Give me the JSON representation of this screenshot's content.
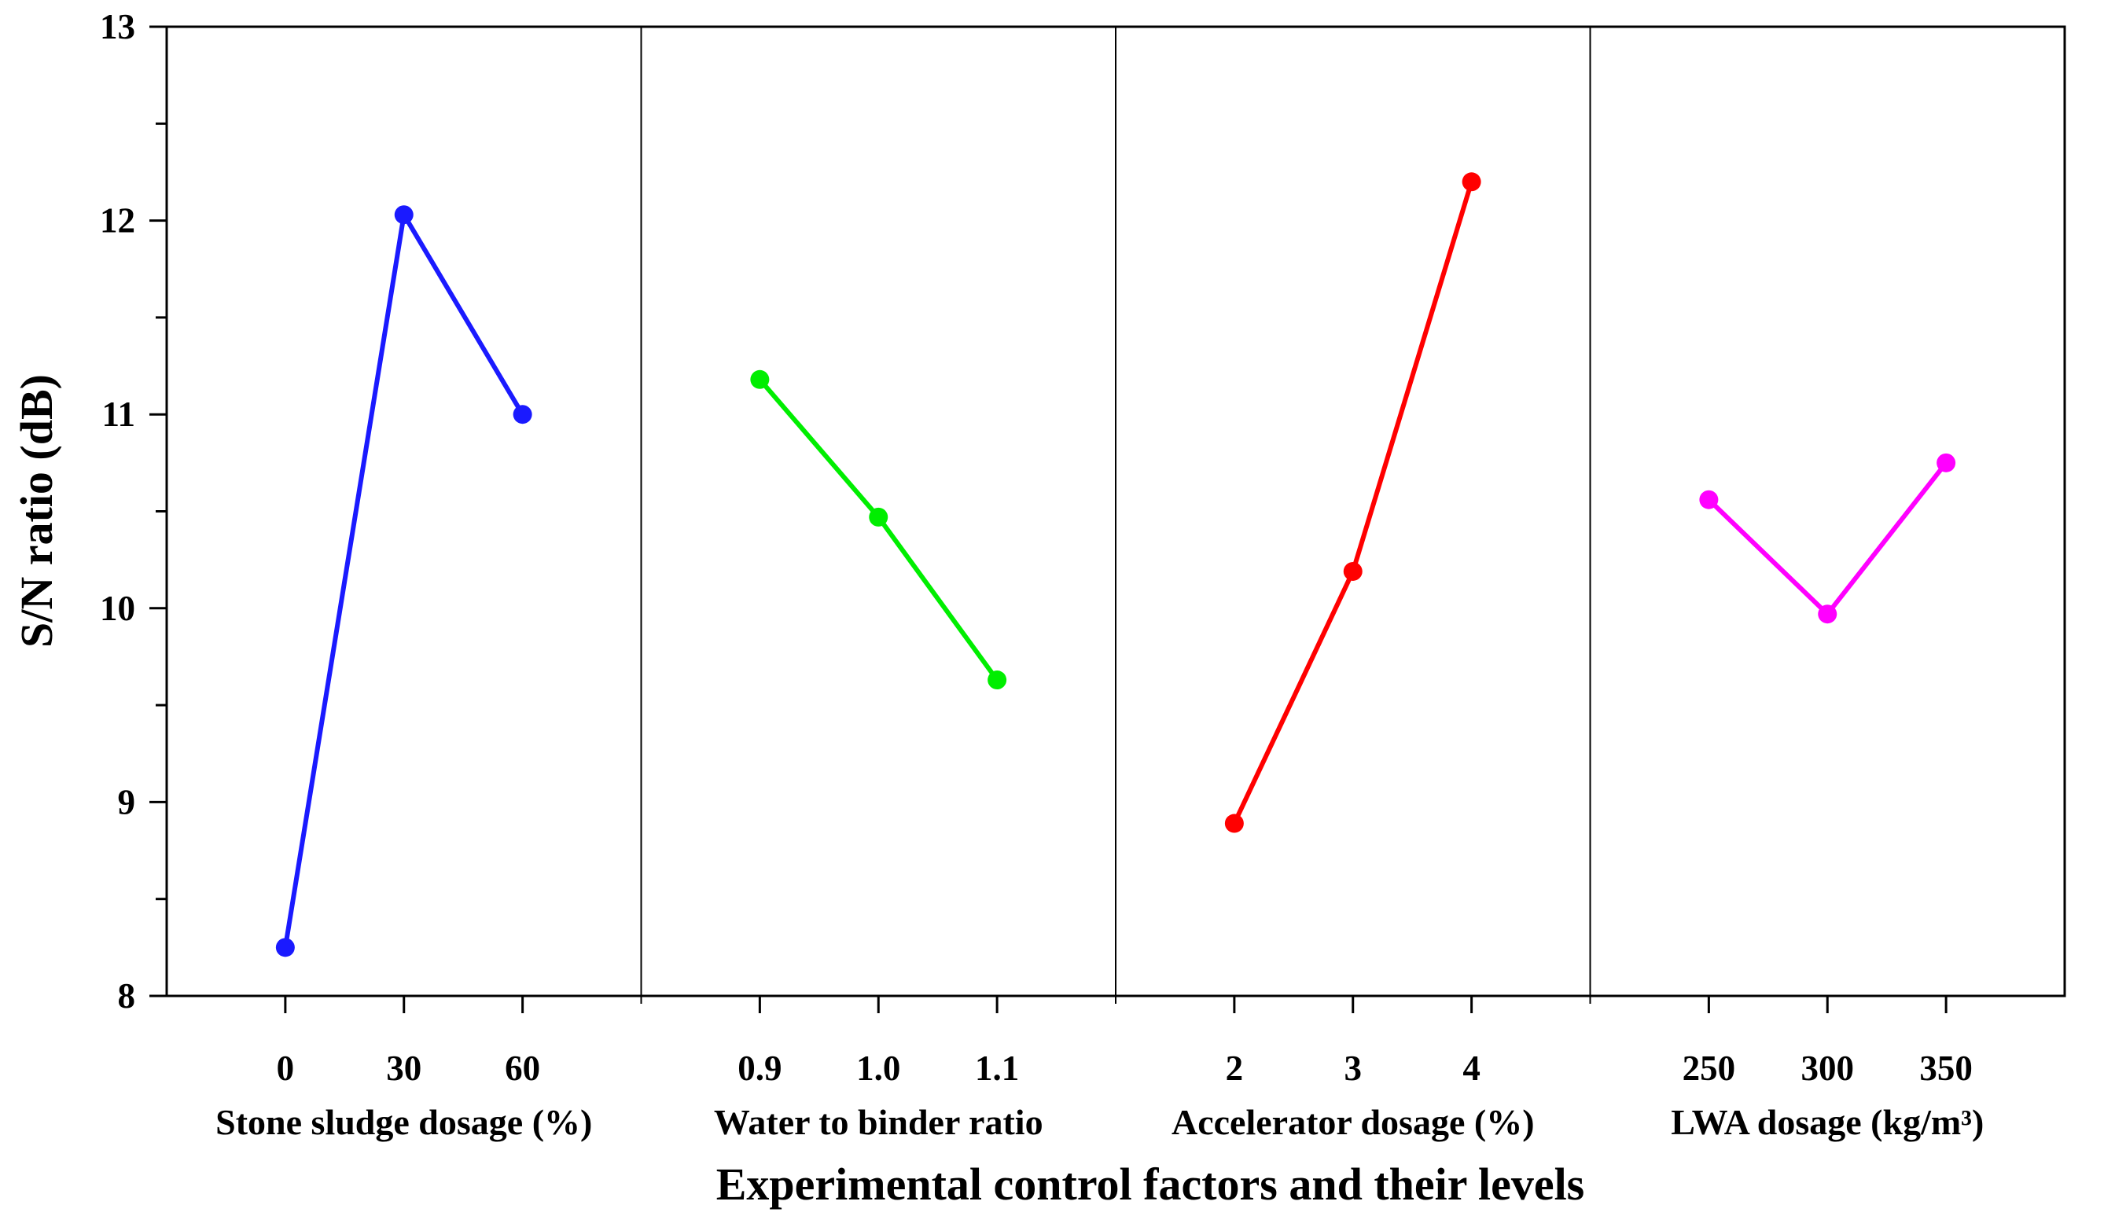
{
  "chart_data": {
    "type": "line",
    "title": "",
    "ylabel": "S/N ratio (dB)",
    "xlabel": "Experimental control factors and their levels",
    "ylim": [
      8,
      13
    ],
    "yticks": [
      "8",
      "9",
      "10",
      "11",
      "12",
      "13"
    ],
    "grid": false,
    "panels": [
      {
        "factor": "Stone sludge dosage (%)",
        "levels": [
          "0",
          "30",
          "60"
        ],
        "values": [
          8.25,
          12.03,
          11.0
        ],
        "color": "#1a1aff"
      },
      {
        "factor": "Water to binder ratio",
        "levels": [
          "0.9",
          "1.0",
          "1.1"
        ],
        "values": [
          11.18,
          10.47,
          9.63
        ],
        "color": "#00ee00"
      },
      {
        "factor": "Accelerator dosage (%)",
        "levels": [
          "2",
          "3",
          "4"
        ],
        "values": [
          8.89,
          10.19,
          12.2
        ],
        "color": "#ff0000"
      },
      {
        "factor": "LWA dosage (kg/m³)",
        "levels": [
          "250",
          "300",
          "350"
        ],
        "values": [
          10.56,
          9.97,
          10.75
        ],
        "color": "#ff00ff"
      }
    ]
  }
}
